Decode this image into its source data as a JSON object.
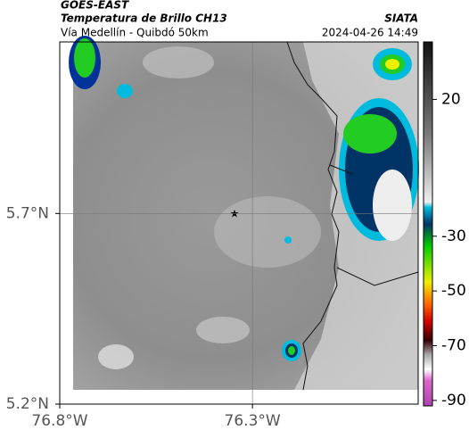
{
  "header": {
    "source": "GOES-EAST",
    "title": "Temperatura de Brillo CH13",
    "subtitle": "Vía Medellín - Quibdó 50km",
    "brand": "SIATA",
    "datetime": "2024-04-26 14:49"
  },
  "map": {
    "xlim": [
      -76.8,
      -75.87
    ],
    "ylim": [
      5.2,
      6.15
    ],
    "xticks": [
      {
        "value": -76.8,
        "label": "76.8°W"
      },
      {
        "value": -76.3,
        "label": "76.3°W"
      }
    ],
    "yticks": [
      {
        "value": 5.2,
        "label": "5.2°N"
      },
      {
        "value": 5.7,
        "label": "5.7°N"
      }
    ]
  },
  "colorbar": {
    "lim": [
      -92,
      41
    ],
    "ticks": [
      20,
      -30,
      -50,
      -70,
      -90
    ]
  }
}
